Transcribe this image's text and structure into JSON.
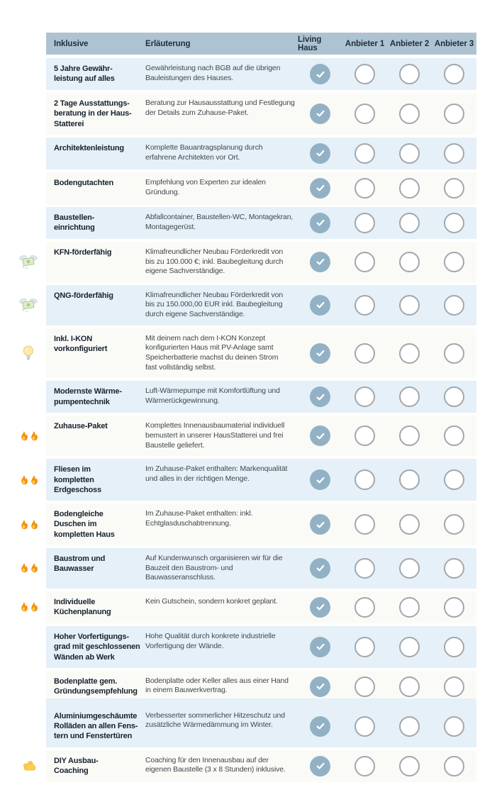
{
  "header": {
    "col_feature": "Inklusive",
    "col_description": "Erläuterung",
    "providers": [
      "Living Haus",
      "Anbieter 1",
      "Anbieter 2",
      "Anbieter 3"
    ]
  },
  "colors": {
    "header_bg": "#aec3d1",
    "row_alt_bg": "#e5f0f8",
    "row_bg": "#fafaf6",
    "check_fill": "#92b1c5",
    "check_mark": "#ffffff",
    "empty_circle_border": "#a2a7ac",
    "title_text": "#17222e",
    "desc_text": "#42484d",
    "header_text": "#222f3b"
  },
  "rows": [
    {
      "title": "5 Jahre Gewähr-\nleistung auf alles",
      "description": "Gewährleistung nach BGB auf die übrigen\nBauleistungen des Hauses.",
      "icon": null,
      "shaded": true,
      "checks": [
        true,
        false,
        false,
        false
      ]
    },
    {
      "title": "2 Tage Ausstattungs-\nberatung in der Haus-\nStatterei",
      "description": "Beratung zur Hausausstattung und Festlegung\nder Details zum Zuhause-Paket.",
      "icon": null,
      "shaded": false,
      "checks": [
        true,
        false,
        false,
        false
      ]
    },
    {
      "title": "Architektenleistung",
      "description": "Komplette Bauantragsplanung durch\nerfahrene Architekten vor Ort.",
      "icon": null,
      "shaded": true,
      "checks": [
        true,
        false,
        false,
        false
      ]
    },
    {
      "title": "Bodengutachten",
      "description": "Empfehlung von Experten zur idealen Gründung.",
      "icon": null,
      "shaded": false,
      "checks": [
        true,
        false,
        false,
        false
      ]
    },
    {
      "title": "Baustellen-\neinrichtung",
      "description": "Abfallcontainer, Baustellen-WC, Montagekran,\nMontagegerüst.",
      "icon": null,
      "shaded": true,
      "checks": [
        true,
        false,
        false,
        false
      ]
    },
    {
      "title": "KFN-förderfähig",
      "description": "Klimafreundlicher Neubau Förderkredit von\nbis zu 100.000 €; inkl. Baubegleitung durch\neigene Sachverständige.",
      "icon": "money-wings",
      "shaded": false,
      "checks": [
        true,
        false,
        false,
        false
      ]
    },
    {
      "title": "QNG-förderfähig",
      "description": "Klimafreundlicher Neubau Förderkredit von\nbis zu 150.000,00 EUR inkl. Baubegleitung\ndurch eigene Sachverständige.",
      "icon": "money-wings",
      "shaded": true,
      "checks": [
        true,
        false,
        false,
        false
      ]
    },
    {
      "title": "Inkl. I-KON\nvorkonfiguriert",
      "description": "Mit deinem nach dem I-KON Konzept\nkonfigurierten Haus mit PV-Anlage samt\nSpeicherbatterie machst du deinen Strom\nfast vollständig selbst.",
      "icon": "lightbulb",
      "shaded": false,
      "checks": [
        true,
        false,
        false,
        false
      ]
    },
    {
      "title": "Modernste Wärme-\npumpentechnik",
      "description": "Luft-Wärmepumpe mit Komfortlüftung und\nWärmerückgewinnung.",
      "icon": null,
      "shaded": true,
      "checks": [
        true,
        false,
        false,
        false
      ]
    },
    {
      "title": "Zuhause-Paket",
      "description": "Komplettes Innenausbaumaterial individuell\nbemustert in unserer HausStatterei und frei\nBaustelle geliefert.",
      "icon": "double-fire",
      "shaded": false,
      "checks": [
        true,
        false,
        false,
        false
      ]
    },
    {
      "title": "Fliesen im\nkompletten\nErdgeschoss",
      "description": "Im Zuhause-Paket enthalten: Markenqualität\nund alles in der richtigen Menge.",
      "icon": "double-fire",
      "shaded": true,
      "checks": [
        true,
        false,
        false,
        false
      ]
    },
    {
      "title": "Bodengleiche\nDuschen im\nkompletten Haus",
      "description": "Im Zuhause-Paket enthalten: inkl.\nEchtglasduschabtrennung.",
      "icon": "double-fire",
      "shaded": false,
      "checks": [
        true,
        false,
        false,
        false
      ]
    },
    {
      "title": "Baustrom und\nBauwasser",
      "description": "Auf Kundenwunsch organisieren wir für die\nBauzeit den Baustrom- und Bauwasseranschluss.",
      "icon": "double-fire",
      "shaded": true,
      "checks": [
        true,
        false,
        false,
        false
      ]
    },
    {
      "title": "Individuelle\nKüchenplanung",
      "description": "Kein Gutschein, sondern konkret geplant.",
      "icon": "double-fire",
      "shaded": false,
      "checks": [
        true,
        false,
        false,
        false
      ]
    },
    {
      "title": "Hoher Vorfertigungs-\ngrad mit geschlossenen\nWänden ab Werk",
      "description": "Hohe Qualität durch konkrete industrielle\nVorfertigung der Wände.",
      "icon": null,
      "shaded": true,
      "checks": [
        true,
        false,
        false,
        false
      ]
    },
    {
      "title": "Bodenplatte gem.\nGründungsempfehlung",
      "description": "Bodenplatte oder Keller alles aus einer Hand\nin einem Bauwerkvertrag.",
      "icon": null,
      "shaded": false,
      "checks": [
        true,
        false,
        false,
        false
      ]
    },
    {
      "title": "Aluminiumgeschäumte\nRolläden an allen Fens-\ntern und Fenstertüren",
      "description": "Verbesserter sommerlicher Hitzeschutz und\nzusätzliche Wärmedämmung im Winter.",
      "icon": null,
      "shaded": true,
      "checks": [
        true,
        false,
        false,
        false
      ]
    },
    {
      "title": "DIY Ausbau-\nCoaching",
      "description": "Coaching für den Innenausbau auf der\neigenen Baustelle (3 x 8 Stunden) inklusive.",
      "icon": "flexed-biceps",
      "shaded": false,
      "checks": [
        true,
        false,
        false,
        false
      ]
    }
  ]
}
